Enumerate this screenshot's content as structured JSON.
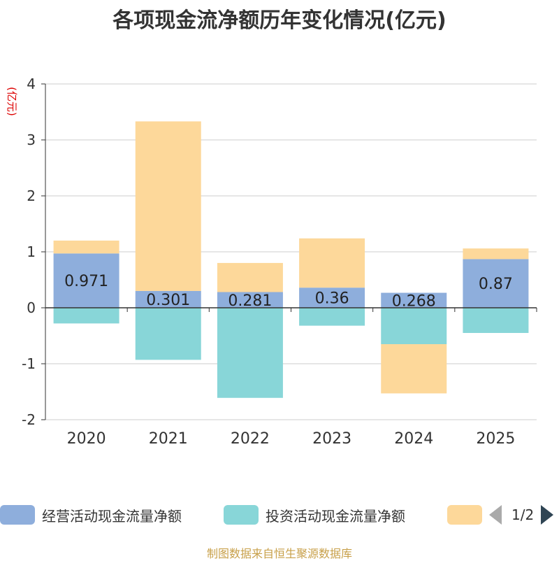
{
  "chart_data": {
    "type": "bar",
    "stacked": true,
    "title": "各项现金流净额历年变化情况(亿元)",
    "ylabel": "(亿元)",
    "xlabel": "",
    "ylim": [
      -2,
      4
    ],
    "yticks": [
      -2,
      -1,
      0,
      1,
      2,
      3,
      4
    ],
    "categories": [
      "2020",
      "2021",
      "2022",
      "2023",
      "2024",
      "2025"
    ],
    "series": [
      {
        "name": "经营活动现金流量净额",
        "color": "#8eaedc",
        "values": [
          0.971,
          0.301,
          0.281,
          0.36,
          0.268,
          0.87
        ],
        "show_labels": true
      },
      {
        "name": "投资活动现金流量净额",
        "color": "#88d6d8",
        "values": [
          -0.28,
          -0.93,
          -1.61,
          -0.32,
          -0.65,
          -0.45
        ],
        "show_labels": false
      },
      {
        "name": "",
        "color": "#fdd89a",
        "values": [
          0.23,
          3.03,
          0.52,
          0.88,
          -0.88,
          0.19
        ],
        "show_labels": false
      }
    ],
    "grid": true,
    "legend_position": "bottom"
  },
  "legend": {
    "items": [
      {
        "label": "经营活动现金流量净额",
        "color": "#8eaedc"
      },
      {
        "label": "投资活动现金流量净额",
        "color": "#88d6d8"
      },
      {
        "label": "",
        "color": "#fdd89a"
      }
    ],
    "pager_text": "1/2"
  },
  "footer": {
    "source": "制图数据来自恒生聚源数据库"
  }
}
